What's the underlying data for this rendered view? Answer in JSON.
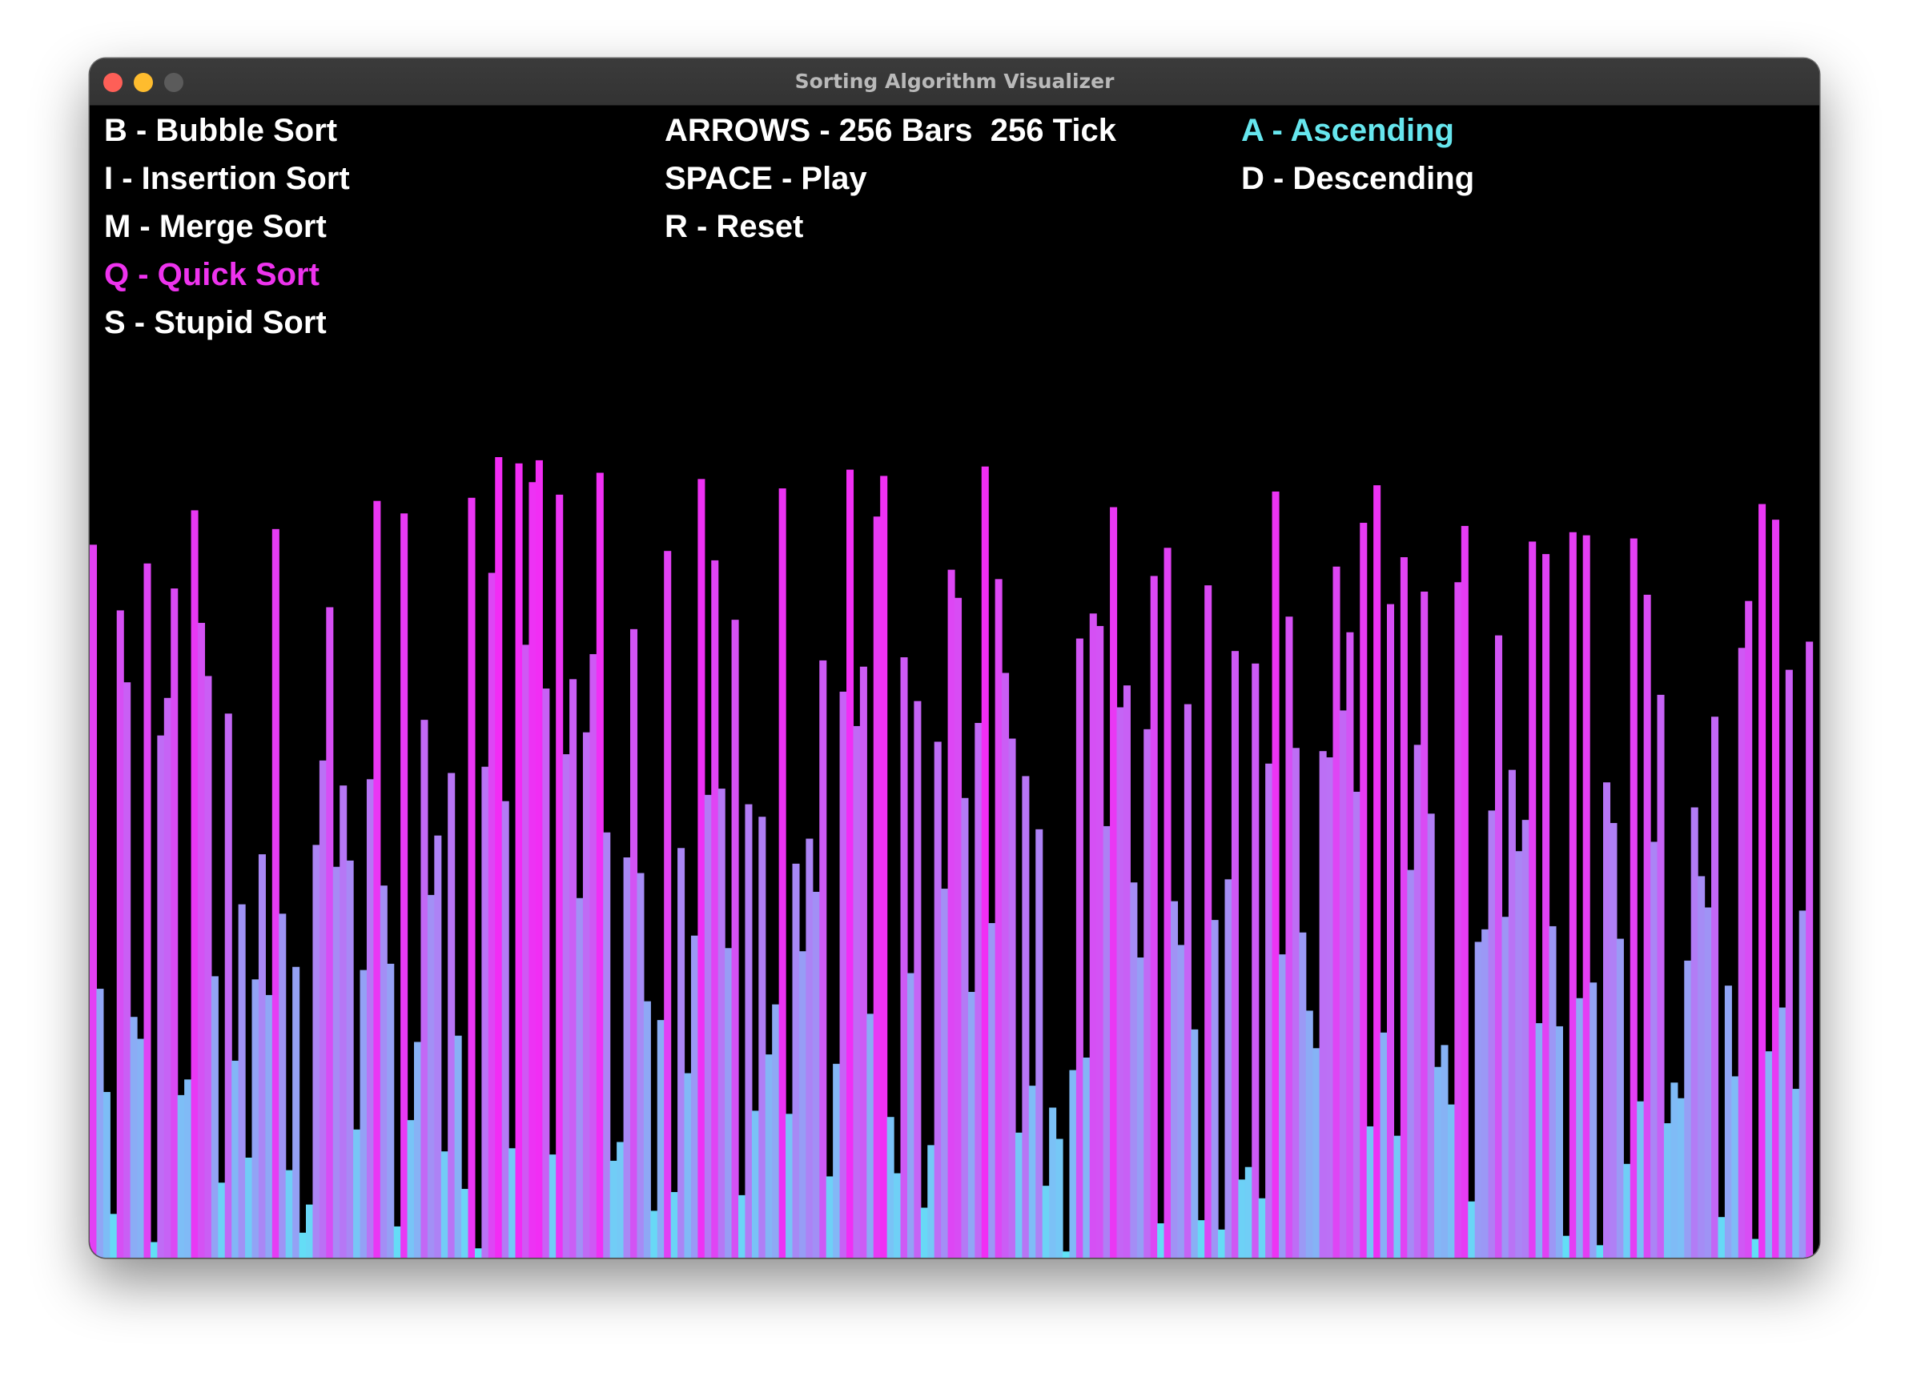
{
  "window": {
    "title": "Sorting Algorithm Visualizer"
  },
  "colors": {
    "text": "#ffffff",
    "selected_algorithm": "#ee33ee",
    "selected_order": "#66e6ee",
    "bar_low": "#5fe3f6",
    "bar_high": "#f22cf4",
    "background": "#000000"
  },
  "menu": {
    "algorithms": [
      {
        "key": "B",
        "label": "B - Bubble Sort",
        "selected": false
      },
      {
        "key": "I",
        "label": "I - Insertion Sort",
        "selected": false
      },
      {
        "key": "M",
        "label": "M - Merge Sort",
        "selected": false
      },
      {
        "key": "Q",
        "label": "Q - Quick Sort",
        "selected": true
      },
      {
        "key": "S",
        "label": "S - Stupid Sort",
        "selected": false
      }
    ],
    "controls": {
      "arrows_label": "ARROWS - 256 Bars  256 Tick",
      "space_label": "SPACE - Play",
      "reset_label": "R - Reset"
    },
    "order": [
      {
        "key": "A",
        "label": "A - Ascending",
        "selected": true
      },
      {
        "key": "D",
        "label": "D - Descending",
        "selected": false
      }
    ]
  },
  "visualization": {
    "bar_count": 256,
    "max_value": 256
  }
}
